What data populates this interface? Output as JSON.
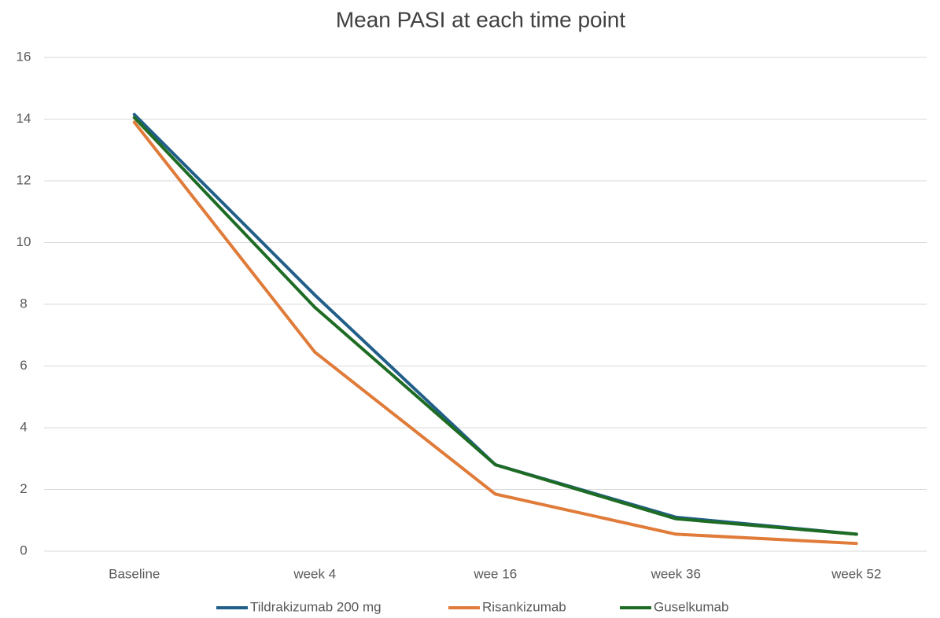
{
  "chart_data": {
    "type": "line",
    "title": "Mean PASI at each time point",
    "categories": [
      "Baseline",
      "week 4",
      "wee 16",
      "week 36",
      "week 52"
    ],
    "series": [
      {
        "name": "Tildrakizumab 200 mg",
        "color": "#215f8a",
        "values": [
          14.15,
          8.3,
          2.8,
          1.1,
          0.55
        ]
      },
      {
        "name": "Risankizumab",
        "color": "#e07b39",
        "values": [
          13.9,
          6.45,
          1.85,
          0.55,
          0.25
        ]
      },
      {
        "name": "Guselkumab",
        "color": "#1e6b24",
        "values": [
          14.05,
          7.9,
          2.8,
          1.05,
          0.55
        ]
      }
    ],
    "ylim": [
      0,
      16
    ],
    "yticks": [
      0,
      2,
      4,
      6,
      8,
      10,
      12,
      14,
      16
    ],
    "grid": true,
    "legend": "bottom"
  }
}
